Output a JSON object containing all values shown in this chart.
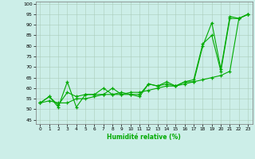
{
  "xlabel": "Humidité relative (%)",
  "xlim": [
    -0.5,
    23.5
  ],
  "ylim": [
    43,
    101
  ],
  "yticks": [
    45,
    50,
    55,
    60,
    65,
    70,
    75,
    80,
    85,
    90,
    95,
    100
  ],
  "xticks": [
    0,
    1,
    2,
    3,
    4,
    5,
    6,
    7,
    8,
    9,
    10,
    11,
    12,
    13,
    14,
    15,
    16,
    17,
    18,
    19,
    20,
    21,
    22,
    23
  ],
  "background_color": "#cceee8",
  "line_color": "#00aa00",
  "grid_color": "#aaccbb",
  "series": [
    [
      53,
      56,
      51,
      63,
      51,
      57,
      57,
      57,
      60,
      57,
      57,
      56,
      62,
      61,
      63,
      61,
      63,
      63,
      80,
      91,
      69,
      94,
      93,
      95
    ],
    [
      53,
      56,
      52,
      58,
      56,
      57,
      57,
      60,
      57,
      58,
      57,
      57,
      62,
      61,
      62,
      61,
      63,
      64,
      81,
      85,
      68,
      93,
      93,
      95
    ],
    [
      53,
      54,
      53,
      53,
      55,
      55,
      56,
      57,
      57,
      57,
      58,
      58,
      59,
      60,
      61,
      61,
      62,
      63,
      64,
      65,
      66,
      68,
      93,
      95
    ]
  ]
}
